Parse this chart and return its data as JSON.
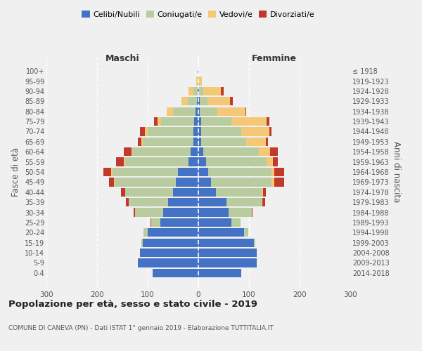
{
  "age_groups": [
    "100+",
    "95-99",
    "90-94",
    "85-89",
    "80-84",
    "75-79",
    "70-74",
    "65-69",
    "60-64",
    "55-59",
    "50-54",
    "45-49",
    "40-44",
    "35-39",
    "30-34",
    "25-29",
    "20-24",
    "15-19",
    "10-14",
    "5-9",
    "0-4"
  ],
  "birth_years": [
    "≤ 1918",
    "1919-1923",
    "1924-1928",
    "1929-1933",
    "1934-1938",
    "1939-1943",
    "1944-1948",
    "1949-1953",
    "1954-1958",
    "1959-1963",
    "1964-1968",
    "1969-1973",
    "1974-1978",
    "1979-1983",
    "1984-1988",
    "1989-1993",
    "1994-1998",
    "1999-2003",
    "2004-2008",
    "2009-2013",
    "2014-2018"
  ],
  "maschi": {
    "celibi": [
      1,
      0,
      2,
      3,
      5,
      8,
      10,
      10,
      15,
      20,
      40,
      45,
      50,
      60,
      70,
      75,
      100,
      110,
      115,
      120,
      90
    ],
    "coniugati": [
      0,
      2,
      8,
      18,
      45,
      65,
      90,
      100,
      115,
      125,
      130,
      120,
      95,
      78,
      55,
      18,
      8,
      3,
      0,
      0,
      0
    ],
    "vedovi": [
      0,
      2,
      10,
      12,
      12,
      8,
      5,
      3,
      2,
      2,
      2,
      1,
      0,
      0,
      0,
      0,
      0,
      0,
      0,
      0,
      0
    ],
    "divorziati": [
      0,
      0,
      0,
      0,
      0,
      6,
      10,
      6,
      15,
      15,
      15,
      10,
      8,
      5,
      3,
      2,
      0,
      0,
      0,
      0,
      0
    ]
  },
  "femmine": {
    "nubili": [
      0,
      0,
      2,
      3,
      3,
      5,
      5,
      5,
      10,
      15,
      20,
      25,
      35,
      55,
      60,
      65,
      90,
      110,
      115,
      115,
      85
    ],
    "coniugate": [
      0,
      2,
      8,
      15,
      35,
      60,
      80,
      90,
      110,
      120,
      125,
      120,
      90,
      70,
      45,
      18,
      8,
      3,
      0,
      0,
      0
    ],
    "vedove": [
      0,
      5,
      35,
      45,
      55,
      70,
      55,
      38,
      22,
      12,
      5,
      5,
      3,
      2,
      0,
      0,
      0,
      0,
      0,
      0,
      0
    ],
    "divorziate": [
      0,
      0,
      5,
      5,
      2,
      5,
      5,
      5,
      15,
      10,
      20,
      20,
      5,
      5,
      2,
      0,
      0,
      0,
      0,
      0,
      0
    ]
  },
  "colors": {
    "celibi_nubili": "#4472c4",
    "coniugati": "#b8cca0",
    "vedovi": "#f5c878",
    "divorziati": "#c0392b"
  },
  "title": "Popolazione per età, sesso e stato civile - 2019",
  "subtitle": "COMUNE DI CANEVA (PN) - Dati ISTAT 1° gennaio 2019 - Elaborazione TUTTITALIA.IT",
  "ylabel_left": "Fasce di età",
  "ylabel_right": "Anni di nascita",
  "xlabel_maschi": "Maschi",
  "xlabel_femmine": "Femmine",
  "xlim": 300,
  "background_color": "#f0f0f0"
}
